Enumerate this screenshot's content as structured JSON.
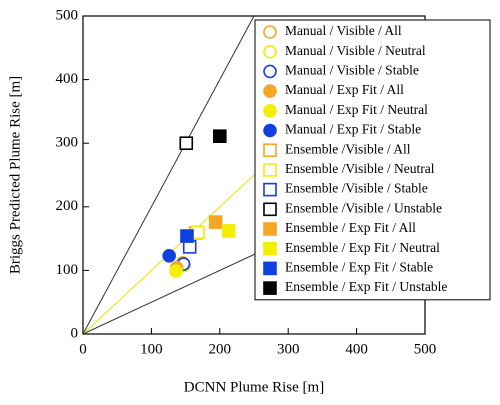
{
  "chart_data": {
    "type": "scatter",
    "x_label": "DCNN Plume Rise [m]",
    "y_label": "Briggs Predicted Plume Rise [m]",
    "xlim": [
      0,
      500
    ],
    "ylim": [
      0,
      500
    ],
    "xticks": [
      0,
      100,
      200,
      300,
      400,
      500
    ],
    "yticks": [
      0,
      100,
      200,
      300,
      400,
      500
    ],
    "lines": [
      {
        "color": "#333333",
        "x": [
          0,
          250
        ],
        "y": [
          0,
          500
        ]
      },
      {
        "color": "#333333",
        "x": [
          0,
          500
        ],
        "y": [
          0,
          250
        ]
      },
      {
        "color": "#e6e600",
        "x": [
          0,
          250
        ],
        "y": [
          0,
          250
        ]
      }
    ],
    "series": [
      {
        "name": "Manual / Visible / All",
        "color": "#f5a623",
        "marker": "circle",
        "filled": false,
        "x": [
          146
        ],
        "values": [
          112
        ]
      },
      {
        "name": "Manual / Visible / Neutral",
        "color": "#f0f000",
        "marker": "circle",
        "filled": false,
        "x": [
          148
        ],
        "values": [
          108
        ]
      },
      {
        "name": "Manual / Visible / Stable",
        "color": "#1040e0",
        "marker": "circle",
        "filled": false,
        "x": [
          147
        ],
        "values": [
          110
        ]
      },
      {
        "name": "Manual / Exp Fit / All",
        "color": "#f5a623",
        "marker": "circle",
        "filled": true,
        "x": [
          137
        ],
        "values": [
          104
        ]
      },
      {
        "name": "Manual / Exp Fit / Neutral",
        "color": "#f0f000",
        "marker": "circle",
        "filled": true,
        "x": [
          136
        ],
        "values": [
          99
        ]
      },
      {
        "name": "Manual / Exp Fit / Stable",
        "color": "#1040e0",
        "marker": "circle",
        "filled": true,
        "x": [
          126
        ],
        "values": [
          123
        ]
      },
      {
        "name": "Ensemble /Visible / All",
        "color": "#f5a623",
        "marker": "square",
        "filled": false,
        "x": [
          165
        ],
        "values": [
          159
        ]
      },
      {
        "name": "Ensemble /Visible / Neutral",
        "color": "#f0f000",
        "marker": "square",
        "filled": false,
        "x": [
          168
        ],
        "values": [
          160
        ]
      },
      {
        "name": "Ensemble /Visible / Stable",
        "color": "#1040e0",
        "marker": "square",
        "filled": false,
        "x": [
          156
        ],
        "values": [
          137
        ]
      },
      {
        "name": "Ensemble /Visible / Unstable",
        "color": "#000000",
        "marker": "square",
        "filled": false,
        "x": [
          151
        ],
        "values": [
          300
        ]
      },
      {
        "name": "Ensemble / Exp Fit / All",
        "color": "#f5a623",
        "marker": "square",
        "filled": true,
        "x": [
          194
        ],
        "values": [
          176
        ]
      },
      {
        "name": "Ensemble / Exp Fit / Neutral",
        "color": "#f0f000",
        "marker": "square",
        "filled": true,
        "x": [
          213
        ],
        "values": [
          162
        ]
      },
      {
        "name": "Ensemble / Exp Fit / Stable",
        "color": "#1040e0",
        "marker": "square",
        "filled": true,
        "x": [
          152
        ],
        "values": [
          154
        ]
      },
      {
        "name": "Ensemble / Exp Fit / Unstable",
        "color": "#000000",
        "marker": "square",
        "filled": true,
        "x": [
          200
        ],
        "values": [
          311
        ]
      }
    ]
  }
}
